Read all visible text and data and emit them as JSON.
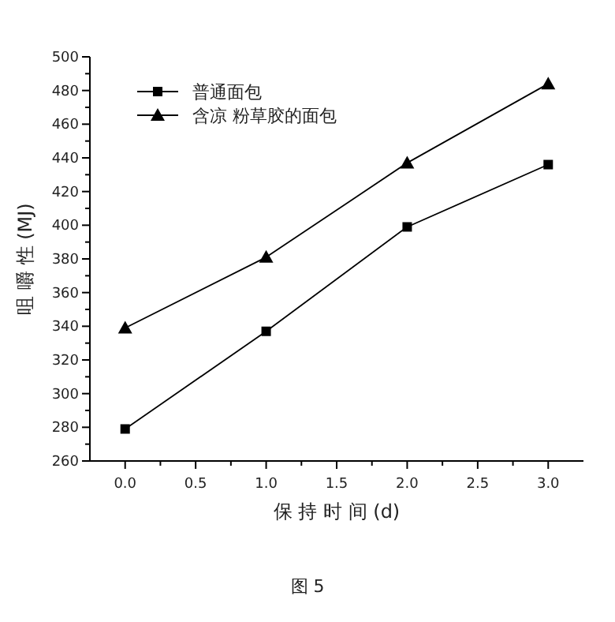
{
  "chart_data": {
    "type": "line",
    "xlabel": "保 持 时 间 (d)",
    "ylabel": "咀 嚼 性 (MJ)",
    "annotations": [
      "图 5"
    ],
    "x": [
      0,
      1,
      2,
      3
    ],
    "series": [
      {
        "name": "普通面包",
        "color": "#000000",
        "marker": "square",
        "values": [
          279,
          337,
          399,
          436
        ]
      },
      {
        "name": "含凉 粉草胶的面包",
        "color": "#000000",
        "marker": "triangle",
        "values": [
          339,
          381,
          437,
          484
        ]
      }
    ],
    "xlim": [
      -0.25,
      3.25
    ],
    "xticks": [
      {
        "value": 0,
        "label": "0.0"
      },
      {
        "value": 0.25,
        "label": null
      },
      {
        "value": 0.5,
        "label": "0.5"
      },
      {
        "value": 0.75,
        "label": null
      },
      {
        "value": 1,
        "label": "1.0"
      },
      {
        "value": 1.25,
        "label": null
      },
      {
        "value": 1.5,
        "label": "1.5"
      },
      {
        "value": 1.75,
        "label": null
      },
      {
        "value": 2,
        "label": "2.0"
      },
      {
        "value": 2.25,
        "label": null
      },
      {
        "value": 2.5,
        "label": "2.5"
      },
      {
        "value": 2.75,
        "label": null
      },
      {
        "value": 3,
        "label": "3.0"
      }
    ],
    "ylim": [
      260,
      500
    ],
    "yticks": [
      260,
      {
        "value": 270,
        "label": null
      },
      280,
      {
        "value": 290,
        "label": null
      },
      300,
      {
        "value": 310,
        "label": null
      },
      320,
      {
        "value": 330,
        "label": null
      },
      340,
      {
        "value": 350,
        "label": null
      },
      360,
      {
        "value": 370,
        "label": null
      },
      380,
      {
        "value": 390,
        "label": null
      },
      400,
      {
        "value": 410,
        "label": null
      },
      420,
      {
        "value": 430,
        "label": null
      },
      440,
      {
        "value": 450,
        "label": null
      },
      460,
      {
        "value": 470,
        "label": null
      },
      480,
      {
        "value": 490,
        "label": null
      },
      500
    ],
    "legend": "top left",
    "grid": false,
    "line_style": "solid"
  }
}
